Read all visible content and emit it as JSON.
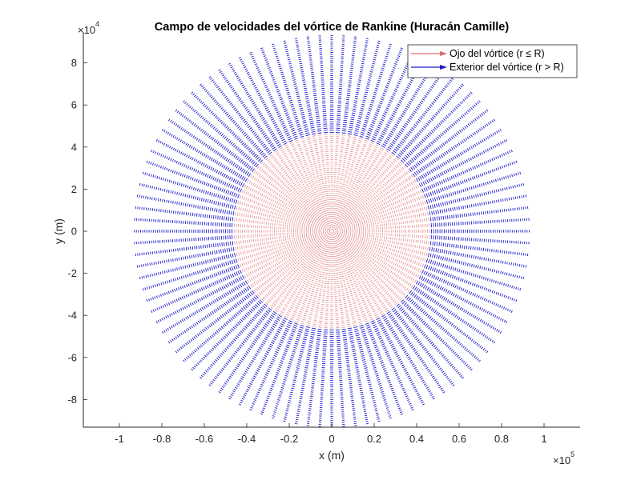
{
  "chart_data": {
    "type": "quiver",
    "title": "Campo de velocidades del vórtice de Rankine (Huracán Camille)",
    "xlabel": "x (m)",
    "ylabel": "y (m)",
    "x_exponent_label": "×10",
    "x_exponent": "5",
    "y_exponent_label": "×10",
    "y_exponent": "4",
    "xlim": [
      -117000,
      117000
    ],
    "ylim": [
      -93000,
      94500
    ],
    "xticks": [
      -100000,
      -80000,
      -60000,
      -40000,
      -20000,
      0,
      20000,
      40000,
      60000,
      80000,
      100000
    ],
    "xtick_labels": [
      "-1",
      "-0.8",
      "-0.6",
      "-0.4",
      "-0.2",
      "0",
      "0.2",
      "0.4",
      "0.6",
      "0.8",
      "1"
    ],
    "yticks": [
      -80000,
      -60000,
      -40000,
      -20000,
      0,
      20000,
      40000,
      60000,
      80000
    ],
    "ytick_labels": [
      "-8",
      "-6",
      "-4",
      "-2",
      "0",
      "2",
      "4",
      "6",
      "8"
    ],
    "grid": false,
    "legend_position": "northeast",
    "series": [
      {
        "name": "Ojo del vórtice (r ≤ R)",
        "color": "#e06a6a",
        "region": "r <= R",
        "r_min": 0,
        "r_max": 46000
      },
      {
        "name": "Exterior del vórtice (r > R)",
        "color": "#1a1acc",
        "region": "r > R",
        "r_min": 46000,
        "r_max": 93000
      }
    ],
    "vortex_radius_R": 46000,
    "outer_radius": 93000,
    "num_spokes": 104,
    "radial_step": 1000,
    "center": [
      0,
      0
    ]
  },
  "legend": {
    "items": [
      {
        "label": "Ojo del vórtice (r ≤ R)",
        "color": "#e06a6a"
      },
      {
        "label": "Exterior del vórtice (r > R)",
        "color": "#1a1acc"
      }
    ]
  }
}
